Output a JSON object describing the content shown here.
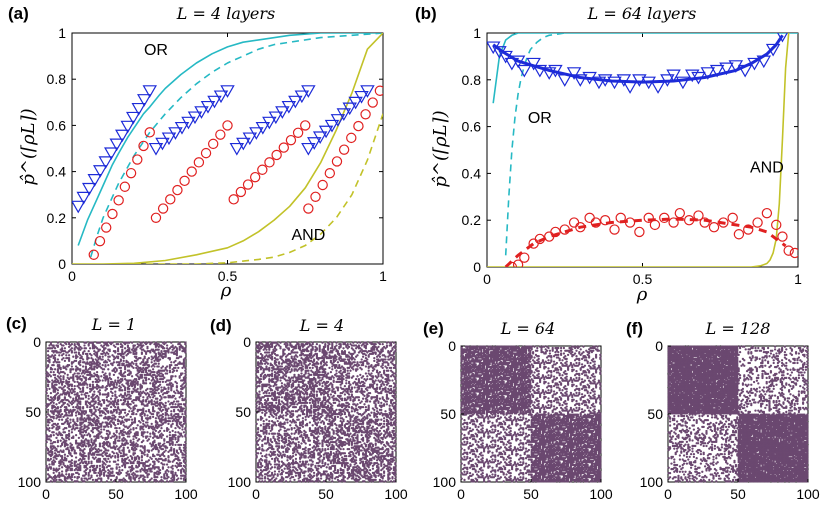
{
  "colors": {
    "cyan": "#26b9c4",
    "olive": "#c2c229",
    "blue": "#1d2bd8",
    "red": "#e02020",
    "dot": "#6b4870",
    "axis": "#000000"
  },
  "chart_data": [
    {
      "panel": "(a)",
      "type": "line",
      "title": "L = 4 layers",
      "xlabel": "ρ",
      "ylabel": "p̂^(⌈ρL⌉)",
      "xlim": [
        0,
        1
      ],
      "ylim": [
        0,
        1
      ],
      "xticks": [
        0,
        0.5,
        1
      ],
      "xtick_labels": [
        "0",
        "0.5",
        "1"
      ],
      "yticks": [
        0,
        0.2,
        0.4,
        0.6,
        0.8,
        1
      ],
      "ytick_labels": [
        "0",
        "0.2",
        "0.4",
        "0.6",
        "0.8",
        "1"
      ],
      "annotations": [
        {
          "text": "OR",
          "x": 0.27,
          "y": 0.93
        },
        {
          "text": "AND",
          "x": 0.76,
          "y": 0.13
        }
      ],
      "series": [
        {
          "name": "OR theory",
          "style": "solid",
          "color": "cyan",
          "x": [
            0.02,
            0.05,
            0.08,
            0.1,
            0.13,
            0.15,
            0.18,
            0.2,
            0.23,
            0.25,
            0.28,
            0.3,
            0.35,
            0.4,
            0.45,
            0.5,
            0.55,
            0.6,
            0.7,
            0.8,
            0.9,
            1.0
          ],
          "y": [
            0.08,
            0.19,
            0.28,
            0.34,
            0.43,
            0.48,
            0.55,
            0.59,
            0.65,
            0.68,
            0.73,
            0.76,
            0.82,
            0.87,
            0.91,
            0.94,
            0.96,
            0.97,
            0.99,
            1.0,
            1.0,
            1.0
          ]
        },
        {
          "name": "OR dashed",
          "style": "dashed",
          "color": "cyan",
          "x": [
            0.06,
            0.08,
            0.1,
            0.13,
            0.15,
            0.2,
            0.25,
            0.3,
            0.35,
            0.4,
            0.45,
            0.5,
            0.55,
            0.6,
            0.65,
            0.7,
            0.8,
            0.9,
            1.0
          ],
          "y": [
            0.03,
            0.12,
            0.2,
            0.29,
            0.35,
            0.47,
            0.57,
            0.65,
            0.72,
            0.78,
            0.83,
            0.87,
            0.9,
            0.93,
            0.95,
            0.96,
            0.98,
            0.99,
            1.0
          ]
        },
        {
          "name": "AND theory",
          "style": "solid",
          "color": "olive",
          "x": [
            0.0,
            0.1,
            0.2,
            0.3,
            0.4,
            0.5,
            0.55,
            0.6,
            0.65,
            0.7,
            0.75,
            0.8,
            0.85,
            0.9,
            0.95,
            1.0
          ],
          "y": [
            0.0,
            0.0,
            0.003,
            0.015,
            0.04,
            0.07,
            0.1,
            0.14,
            0.19,
            0.25,
            0.33,
            0.44,
            0.58,
            0.74,
            0.93,
            1.0
          ]
        },
        {
          "name": "AND dashed",
          "style": "dashed",
          "color": "olive",
          "x": [
            0.2,
            0.3,
            0.4,
            0.5,
            0.6,
            0.65,
            0.7,
            0.75,
            0.8,
            0.85,
            0.9,
            0.95,
            1.0
          ],
          "y": [
            0.0,
            0.0,
            0.0,
            0.005,
            0.02,
            0.03,
            0.05,
            0.08,
            0.13,
            0.2,
            0.3,
            0.45,
            0.65
          ]
        },
        {
          "name": "triangles",
          "marker": "triangle-down",
          "color": "blue",
          "segments": [
            {
              "x0": 0.02,
              "x1": 0.25,
              "y0": 0.25,
              "y1": 0.75,
              "n": 14
            },
            {
              "x0": 0.27,
              "x1": 0.5,
              "y0": 0.5,
              "y1": 0.75,
              "n": 12
            },
            {
              "x0": 0.53,
              "x1": 0.76,
              "y0": 0.5,
              "y1": 0.75,
              "n": 12
            },
            {
              "x0": 0.76,
              "x1": 0.95,
              "y0": 0.5,
              "y1": 0.75,
              "n": 11
            }
          ]
        },
        {
          "name": "circles",
          "marker": "circle",
          "color": "red",
          "segments": [
            {
              "x0": 0.07,
              "x1": 0.25,
              "y0": 0.04,
              "y1": 0.57,
              "n": 10
            },
            {
              "x0": 0.27,
              "x1": 0.5,
              "y0": 0.2,
              "y1": 0.6,
              "n": 11
            },
            {
              "x0": 0.52,
              "x1": 0.75,
              "y0": 0.28,
              "y1": 0.6,
              "n": 11
            },
            {
              "x0": 0.76,
              "x1": 0.99,
              "y0": 0.24,
              "y1": 0.75,
              "n": 11
            }
          ]
        }
      ]
    },
    {
      "panel": "(b)",
      "type": "line",
      "title": "L = 64 layers",
      "xlabel": "ρ",
      "ylabel": "p̂^(⌈ρL⌉)",
      "xlim": [
        0,
        1
      ],
      "ylim": [
        0,
        1
      ],
      "xticks": [
        0,
        0.5,
        1
      ],
      "xtick_labels": [
        "0",
        "0.5",
        "1"
      ],
      "yticks": [
        0,
        0.2,
        0.4,
        0.6,
        0.8,
        1
      ],
      "ytick_labels": [
        "0",
        "0.2",
        "0.4",
        "0.6",
        "0.8",
        "1"
      ],
      "annotations": [
        {
          "text": "OR",
          "x": 0.17,
          "y": 0.64
        },
        {
          "text": "AND",
          "x": 0.9,
          "y": 0.43
        }
      ],
      "series": [
        {
          "name": "OR theory",
          "style": "solid",
          "color": "cyan",
          "x": [
            0.02,
            0.04,
            0.06,
            0.08,
            0.1,
            0.15,
            0.3,
            0.6,
            1.0
          ],
          "y": [
            0.7,
            0.9,
            0.97,
            0.99,
            1.0,
            1.0,
            1.0,
            1.0,
            1.0
          ]
        },
        {
          "name": "OR dashed",
          "style": "dashed",
          "color": "cyan",
          "x": [
            0.06,
            0.07,
            0.08,
            0.09,
            0.1,
            0.11,
            0.12,
            0.13,
            0.14,
            0.16,
            0.18,
            0.2,
            0.25
          ],
          "y": [
            0.05,
            0.3,
            0.5,
            0.64,
            0.74,
            0.81,
            0.86,
            0.9,
            0.93,
            0.96,
            0.98,
            0.99,
            1.0
          ]
        },
        {
          "name": "AND theory",
          "style": "solid",
          "color": "olive",
          "x": [
            0.0,
            0.5,
            0.85,
            0.88,
            0.9,
            0.91,
            0.92,
            0.93,
            0.94,
            0.95,
            0.96,
            0.97
          ],
          "y": [
            0.0,
            0.0,
            0.0,
            0.005,
            0.015,
            0.03,
            0.06,
            0.12,
            0.27,
            0.55,
            0.85,
            1.0
          ]
        },
        {
          "name": "blue fit",
          "style": "solid-thick",
          "color": "blue",
          "x": [
            0.02,
            0.05,
            0.1,
            0.15,
            0.2,
            0.3,
            0.4,
            0.5,
            0.6,
            0.7,
            0.8,
            0.85,
            0.9,
            0.93,
            0.95
          ],
          "y": [
            0.95,
            0.92,
            0.88,
            0.86,
            0.84,
            0.81,
            0.795,
            0.79,
            0.795,
            0.81,
            0.84,
            0.87,
            0.91,
            0.95,
            0.99
          ]
        },
        {
          "name": "red fit",
          "style": "dashed-thick",
          "color": "red",
          "x": [
            0.06,
            0.1,
            0.15,
            0.2,
            0.3,
            0.4,
            0.5,
            0.6,
            0.7,
            0.8,
            0.85,
            0.9,
            0.93,
            0.96
          ],
          "y": [
            0.0,
            0.05,
            0.1,
            0.13,
            0.17,
            0.19,
            0.2,
            0.205,
            0.2,
            0.18,
            0.17,
            0.15,
            0.12,
            0.09
          ]
        },
        {
          "name": "triangles",
          "marker": "triangle-down",
          "color": "blue",
          "x": [
            0.02,
            0.04,
            0.06,
            0.08,
            0.1,
            0.12,
            0.15,
            0.17,
            0.2,
            0.22,
            0.25,
            0.28,
            0.3,
            0.33,
            0.36,
            0.38,
            0.41,
            0.44,
            0.46,
            0.49,
            0.52,
            0.55,
            0.58,
            0.6,
            0.63,
            0.66,
            0.68,
            0.71,
            0.74,
            0.77,
            0.8,
            0.83,
            0.86,
            0.89,
            0.92,
            0.95
          ],
          "y": [
            0.94,
            0.92,
            0.9,
            0.87,
            0.88,
            0.84,
            0.87,
            0.84,
            0.83,
            0.84,
            0.8,
            0.83,
            0.8,
            0.81,
            0.79,
            0.8,
            0.79,
            0.8,
            0.77,
            0.8,
            0.79,
            0.77,
            0.8,
            0.82,
            0.79,
            0.82,
            0.81,
            0.83,
            0.84,
            0.85,
            0.86,
            0.84,
            0.87,
            0.88,
            0.93,
            0.99
          ]
        },
        {
          "name": "circles",
          "marker": "circle",
          "color": "red",
          "x": [
            0.08,
            0.1,
            0.12,
            0.15,
            0.17,
            0.2,
            0.22,
            0.25,
            0.28,
            0.3,
            0.33,
            0.35,
            0.38,
            0.41,
            0.43,
            0.46,
            0.49,
            0.52,
            0.54,
            0.57,
            0.6,
            0.62,
            0.65,
            0.68,
            0.7,
            0.73,
            0.76,
            0.79,
            0.81,
            0.84,
            0.87,
            0.9,
            0.93,
            0.95,
            0.97,
            0.99
          ],
          "y": [
            0.0,
            0.01,
            0.04,
            0.1,
            0.12,
            0.13,
            0.15,
            0.16,
            0.19,
            0.17,
            0.21,
            0.19,
            0.2,
            0.16,
            0.21,
            0.19,
            0.15,
            0.21,
            0.18,
            0.21,
            0.19,
            0.23,
            0.2,
            0.22,
            0.19,
            0.17,
            0.19,
            0.21,
            0.14,
            0.16,
            0.19,
            0.23,
            0.18,
            0.13,
            0.07,
            0.06
          ]
        }
      ]
    },
    {
      "panel": "(c)",
      "type": "scatter",
      "title": "L = 1",
      "xlim": [
        0,
        100
      ],
      "ylim": [
        0,
        100
      ],
      "ticks": [
        0,
        50,
        100
      ],
      "tick_labels": [
        "0",
        "50",
        "100"
      ],
      "density": {
        "diag": 0.32,
        "off": 0.32
      }
    },
    {
      "panel": "(d)",
      "type": "scatter",
      "title": "L = 4",
      "xlim": [
        0,
        100
      ],
      "ylim": [
        0,
        100
      ],
      "ticks": [
        0,
        50,
        100
      ],
      "tick_labels": [
        "0",
        "50",
        "100"
      ],
      "density": {
        "diag": 0.4,
        "off": 0.32
      }
    },
    {
      "panel": "(e)",
      "type": "scatter",
      "title": "L = 64",
      "xlim": [
        0,
        100
      ],
      "ylim": [
        0,
        100
      ],
      "ticks": [
        0,
        50,
        100
      ],
      "tick_labels": [
        "0",
        "50",
        "100"
      ],
      "density": {
        "diag": 0.8,
        "off": 0.34
      }
    },
    {
      "panel": "(f)",
      "type": "scatter",
      "title": "L = 128",
      "xlim": [
        0,
        100
      ],
      "ylim": [
        0,
        100
      ],
      "ticks": [
        0,
        50,
        100
      ],
      "tick_labels": [
        "0",
        "50",
        "100"
      ],
      "density": {
        "diag": 0.92,
        "off": 0.22
      }
    }
  ]
}
